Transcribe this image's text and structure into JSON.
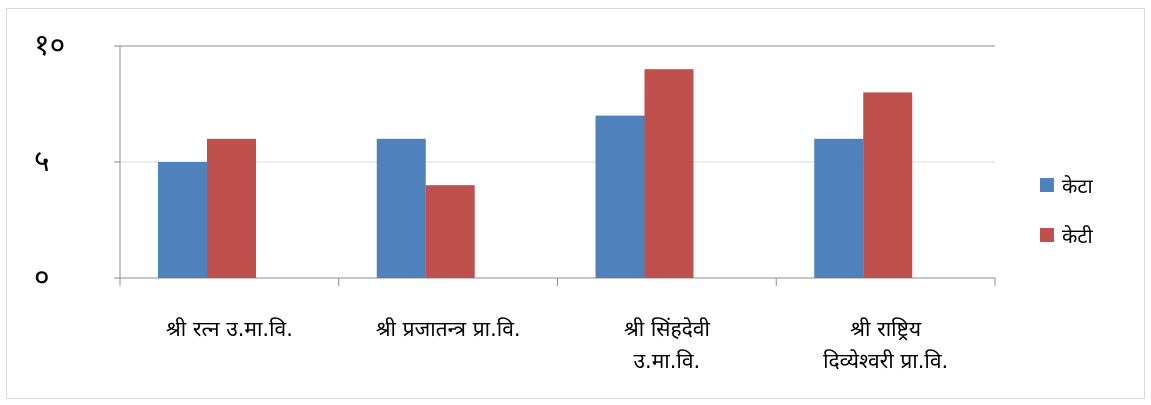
{
  "chart_data": {
    "type": "bar",
    "categories": [
      [
        "श्री रत्न उ.मा.वि."
      ],
      [
        "श्री प्रजातन्त्र प्रा.वि."
      ],
      [
        "श्री सिंहदेवी",
        "उ.मा.वि."
      ],
      [
        "श्री राष्ट्रिय",
        "दिव्येश्वरी प्रा.वि."
      ]
    ],
    "series": [
      {
        "name": "केटा",
        "values": [
          5,
          6,
          7,
          6
        ],
        "color": "#4f81bd"
      },
      {
        "name": "केटी",
        "values": [
          6,
          4,
          9,
          8
        ],
        "color": "#c0504d"
      }
    ],
    "ylim": [
      0,
      10
    ],
    "yticks": [
      {
        "value": 0,
        "label": "०"
      },
      {
        "value": 5,
        "label": "५"
      },
      {
        "value": 10,
        "label": "१०"
      }
    ],
    "grid": true,
    "legend": "right",
    "title": "",
    "xlabel": "",
    "ylabel": ""
  }
}
